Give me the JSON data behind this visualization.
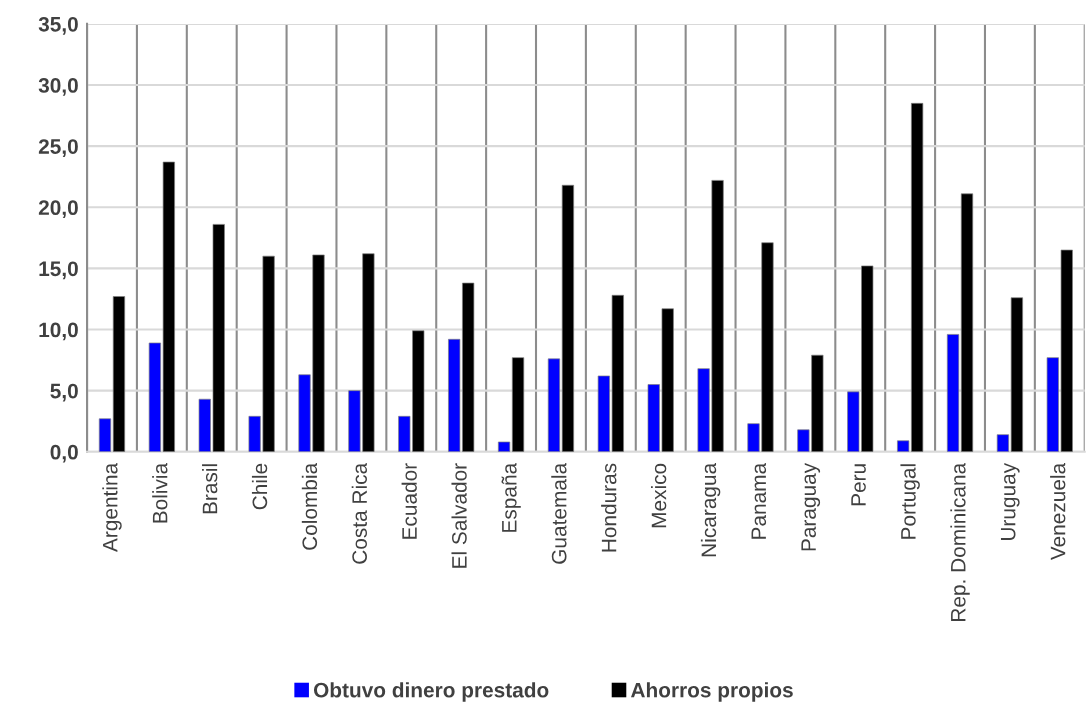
{
  "chart_data": {
    "type": "bar",
    "categories": [
      "Argentina",
      "Bolivia",
      "Brasil",
      "Chile",
      "Colombia",
      "Costa Rica",
      "Ecuador",
      "El Salvador",
      "España",
      "Guatemala",
      "Honduras",
      "Mexico",
      "Nicaragua",
      "Panama",
      "Paraguay",
      "Peru",
      "Portugal",
      "Rep. Dominicana",
      "Uruguay",
      "Venezuela"
    ],
    "series": [
      {
        "name": "Obtuvo dinero prestado",
        "color": "#0000ff",
        "values": [
          2.7,
          8.9,
          4.3,
          2.9,
          6.3,
          5.0,
          2.9,
          9.2,
          0.8,
          7.6,
          6.2,
          5.5,
          6.8,
          2.3,
          1.8,
          4.9,
          0.9,
          9.6,
          1.4,
          7.7
        ]
      },
      {
        "name": "Ahorros propios",
        "color": "#000000",
        "values": [
          12.7,
          23.7,
          18.6,
          16.0,
          16.1,
          16.2,
          9.9,
          13.8,
          7.7,
          21.8,
          12.8,
          11.7,
          22.2,
          17.1,
          7.9,
          15.2,
          28.5,
          21.1,
          12.6,
          16.5
        ]
      }
    ],
    "ylim": [
      0,
      35
    ],
    "yticks": [
      {
        "value": 0,
        "label": "0,0"
      },
      {
        "value": 5,
        "label": "5,0"
      },
      {
        "value": 10,
        "label": "10,0"
      },
      {
        "value": 15,
        "label": "15,0"
      },
      {
        "value": 20,
        "label": "20,0"
      },
      {
        "value": 25,
        "label": "25,0"
      },
      {
        "value": 30,
        "label": "30,0"
      },
      {
        "value": 35,
        "label": "35,0"
      }
    ],
    "grid": true,
    "legend": "bottom"
  }
}
